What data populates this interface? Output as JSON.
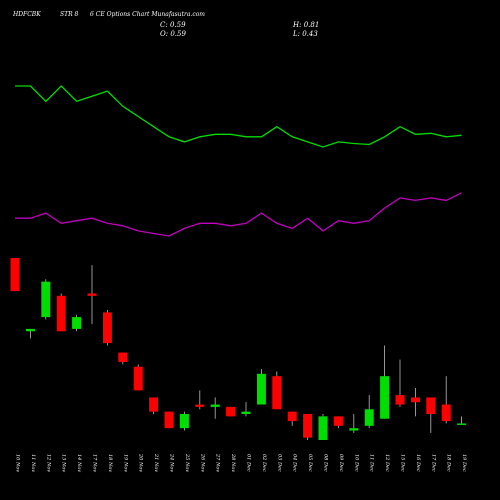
{
  "header": {
    "symbol": "HDFCBK",
    "strike": "STR 8",
    "title": "6 CE Options Chart Munafasutra.com",
    "close_label": "C: 0.59",
    "open_label": "O: 0.59",
    "high_label": "H: 0.81",
    "low_label": "L: 0.43"
  },
  "chart_data": {
    "type": "candlestick",
    "x": [
      "10 Nov",
      "11 Nov",
      "12 Nov",
      "13 Nov",
      "14 Nov",
      "17 Nov",
      "18 Nov",
      "19 Nov",
      "20 Nov",
      "21 Nov",
      "24 Nov",
      "25 Nov",
      "26 Nov",
      "27 Nov",
      "28 Nov",
      "01 Dec",
      "02 Dec",
      "03 Dec",
      "04 Dec",
      "05 Dec",
      "08 Dec",
      "09 Dec",
      "10 Dec",
      "11 Dec",
      "12 Dec",
      "15 Dec",
      "16 Dec",
      "17 Dec",
      "18 Dec",
      "19 Dec"
    ],
    "candles": [
      {
        "open": 10.0,
        "high": 10.0,
        "low": 8.6,
        "close": 8.6
      },
      {
        "open": 6.9,
        "high": 7.0,
        "low": 6.6,
        "close": 7.0
      },
      {
        "open": 7.5,
        "high": 9.1,
        "low": 7.4,
        "close": 9.0
      },
      {
        "open": 8.4,
        "high": 8.5,
        "low": 6.9,
        "close": 6.9
      },
      {
        "open": 7.0,
        "high": 7.6,
        "low": 6.9,
        "close": 7.5
      },
      {
        "open": 8.5,
        "high": 9.7,
        "low": 7.2,
        "close": 8.4
      },
      {
        "open": 7.7,
        "high": 7.8,
        "low": 6.3,
        "close": 6.4
      },
      {
        "open": 6.0,
        "high": 6.0,
        "low": 5.5,
        "close": 5.6
      },
      {
        "open": 5.4,
        "high": 5.5,
        "low": 4.4,
        "close": 4.4
      },
      {
        "open": 4.1,
        "high": 4.1,
        "low": 3.4,
        "close": 3.5
      },
      {
        "open": 3.5,
        "high": 3.5,
        "low": 2.8,
        "close": 2.8
      },
      {
        "open": 2.8,
        "high": 3.5,
        "low": 2.7,
        "close": 3.4
      },
      {
        "open": 3.8,
        "high": 4.4,
        "low": 3.6,
        "close": 3.7
      },
      {
        "open": 3.7,
        "high": 4.1,
        "low": 3.2,
        "close": 3.8
      },
      {
        "open": 3.7,
        "high": 3.7,
        "low": 3.3,
        "close": 3.3
      },
      {
        "open": 3.4,
        "high": 3.9,
        "low": 3.3,
        "close": 3.5
      },
      {
        "open": 3.8,
        "high": 5.3,
        "low": 3.8,
        "close": 5.1
      },
      {
        "open": 5.0,
        "high": 5.2,
        "low": 3.6,
        "close": 3.6
      },
      {
        "open": 3.5,
        "high": 3.5,
        "low": 2.9,
        "close": 3.1
      },
      {
        "open": 3.4,
        "high": 3.4,
        "low": 2.3,
        "close": 2.4
      },
      {
        "open": 2.3,
        "high": 3.4,
        "low": 2.3,
        "close": 3.3
      },
      {
        "open": 3.3,
        "high": 3.3,
        "low": 2.8,
        "close": 2.9
      },
      {
        "open": 2.7,
        "high": 3.4,
        "low": 2.6,
        "close": 2.8
      },
      {
        "open": 2.9,
        "high": 4.2,
        "low": 2.8,
        "close": 3.6
      },
      {
        "open": 3.2,
        "high": 6.3,
        "low": 3.2,
        "close": 5.0
      },
      {
        "open": 4.2,
        "high": 5.7,
        "low": 3.7,
        "close": 3.8
      },
      {
        "open": 4.1,
        "high": 4.5,
        "low": 3.3,
        "close": 3.9
      },
      {
        "open": 4.1,
        "high": 4.1,
        "low": 2.6,
        "close": 3.4
      },
      {
        "open": 3.8,
        "high": 5.0,
        "low": 3.0,
        "close": 3.1
      },
      {
        "open": 3.0,
        "high": 3.3,
        "low": 3.0,
        "close": 3.0
      }
    ],
    "series": [
      {
        "values": [
          68,
          68,
          65,
          68,
          65,
          66,
          67,
          64,
          62,
          60,
          58,
          57,
          58,
          58.5,
          58.5,
          58,
          58,
          60,
          58,
          57,
          56,
          57,
          56.7,
          56.5,
          58,
          60,
          58.5,
          58.7,
          58,
          58.3
        ],
        "color": "#00dd00"
      },
      {
        "values": [
          42,
          42,
          43,
          41,
          41.5,
          42,
          41,
          40.5,
          39.5,
          39,
          38.5,
          40,
          41,
          41,
          40.5,
          41,
          43,
          41,
          40,
          42,
          39.5,
          41.5,
          41,
          41.5,
          44,
          46,
          45.5,
          46,
          45.5,
          47
        ],
        "color": "#c000c0"
      }
    ],
    "colors": {
      "up": "#00dd00",
      "down": "#ff0000",
      "background": "#000000"
    }
  }
}
